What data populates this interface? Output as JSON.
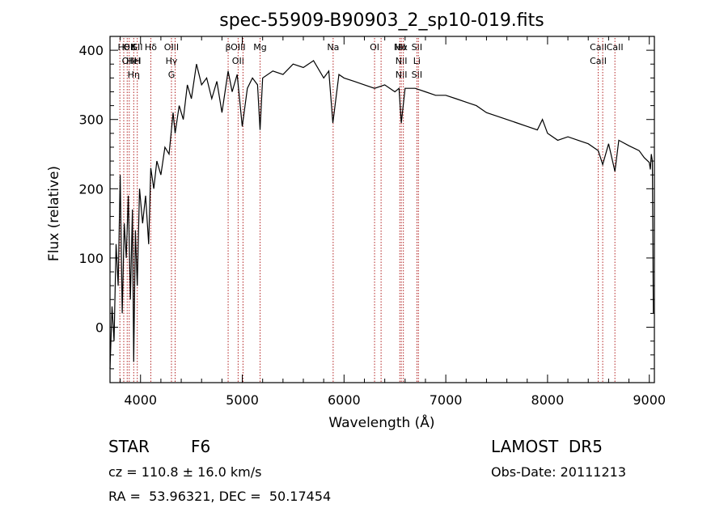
{
  "chart_data": {
    "type": "line",
    "title": "spec-55909-B90903_2_sp10-019.fits",
    "xlabel": "Wavelength (Å)",
    "ylabel": "Flux (relative)",
    "xlim": [
      3700,
      9050
    ],
    "ylim": [
      -80,
      420
    ],
    "xticks": [
      4000,
      5000,
      6000,
      7000,
      8000,
      9000
    ],
    "yticks": [
      0,
      100,
      200,
      300,
      400
    ],
    "grid": false,
    "legend": "none",
    "line_color": "#000000",
    "marker_color": "#b22222",
    "series": [
      {
        "x": [
          3700,
          3720,
          3740,
          3760,
          3780,
          3800,
          3820,
          3840,
          3860,
          3880,
          3900,
          3920,
          3933,
          3950,
          3968,
          3990,
          4020,
          4050,
          4080,
          4101,
          4130,
          4160,
          4200,
          4240,
          4280,
          4320,
          4340,
          4380,
          4420,
          4460,
          4500,
          4550,
          4600,
          4650,
          4700,
          4750,
          4800,
          4861,
          4900,
          4950,
          5000,
          5050,
          5100,
          5150,
          5175,
          5200,
          5300,
          5400,
          5500,
          5600,
          5700,
          5800,
          5850,
          5890,
          5950,
          6000,
          6100,
          6200,
          6300,
          6400,
          6500,
          6540,
          6563,
          6600,
          6700,
          6800,
          6900,
          7000,
          7100,
          7200,
          7300,
          7400,
          7500,
          7600,
          7700,
          7800,
          7900,
          7950,
          8000,
          8100,
          8200,
          8300,
          8400,
          8498,
          8542,
          8600,
          8662,
          8700,
          8800,
          8900,
          8950,
          9000,
          9010,
          9020,
          9030,
          9040
        ],
        "y": [
          -60,
          30,
          -20,
          120,
          60,
          220,
          20,
          150,
          100,
          190,
          40,
          170,
          -50,
          140,
          60,
          200,
          150,
          190,
          120,
          230,
          200,
          240,
          220,
          260,
          250,
          310,
          280,
          320,
          300,
          350,
          330,
          380,
          350,
          360,
          330,
          355,
          310,
          370,
          340,
          365,
          290,
          345,
          360,
          350,
          285,
          360,
          370,
          365,
          380,
          375,
          385,
          360,
          370,
          295,
          365,
          360,
          355,
          350,
          345,
          350,
          340,
          345,
          295,
          345,
          345,
          340,
          335,
          335,
          330,
          325,
          320,
          310,
          305,
          300,
          295,
          290,
          285,
          300,
          280,
          270,
          275,
          270,
          265,
          255,
          235,
          265,
          225,
          270,
          262,
          255,
          245,
          238,
          228,
          250,
          240,
          20
        ]
      }
    ],
    "lines": [
      {
        "nm": 3797,
        "labels": []
      },
      {
        "nm": 3835,
        "labels": [
          "Hθ"
        ]
      },
      {
        "nm": 3869,
        "labels": []
      },
      {
        "nm": 3889,
        "labels": [
          "OII",
          "OIII"
        ]
      },
      {
        "nm": 3933,
        "labels": [
          "K",
          "HeI",
          "Hη"
        ]
      },
      {
        "nm": 3968,
        "labels": [
          "SII",
          "H"
        ]
      },
      {
        "nm": 4101,
        "labels": [
          "Hδ"
        ]
      },
      {
        "nm": 4304,
        "labels": [
          "OIII",
          "Hγ",
          "G"
        ]
      },
      {
        "nm": 4340,
        "labels": []
      },
      {
        "nm": 4861,
        "labels": [
          "β"
        ]
      },
      {
        "nm": 4959,
        "labels": [
          "OIII",
          "OII"
        ]
      },
      {
        "nm": 5007,
        "labels": []
      },
      {
        "nm": 5175,
        "labels": [
          "Mg"
        ]
      },
      {
        "nm": 5893,
        "labels": [
          "Na"
        ]
      },
      {
        "nm": 6300,
        "labels": [
          "OI"
        ]
      },
      {
        "nm": 6364,
        "labels": []
      },
      {
        "nm": 6548,
        "labels": [
          "NII"
        ]
      },
      {
        "nm": 6563,
        "labels": [
          "Hα",
          "NII",
          "NII"
        ]
      },
      {
        "nm": 6583,
        "labels": []
      },
      {
        "nm": 6716,
        "labels": [
          "SII",
          "Li",
          "SII"
        ]
      },
      {
        "nm": 6731,
        "labels": []
      },
      {
        "nm": 8498,
        "labels": [
          "CaII",
          "CaII"
        ]
      },
      {
        "nm": 8542,
        "labels": []
      },
      {
        "nm": 8662,
        "labels": [
          "CaII"
        ]
      }
    ]
  },
  "info": {
    "class": "STAR",
    "subclass": "F6",
    "survey": "LAMOST  DR5",
    "cz": "cz = 110.8 ± 16.0 km/s",
    "obs_date": "Obs-Date: 20111213",
    "coords": "RA =  53.96321, DEC =  50.17454"
  }
}
